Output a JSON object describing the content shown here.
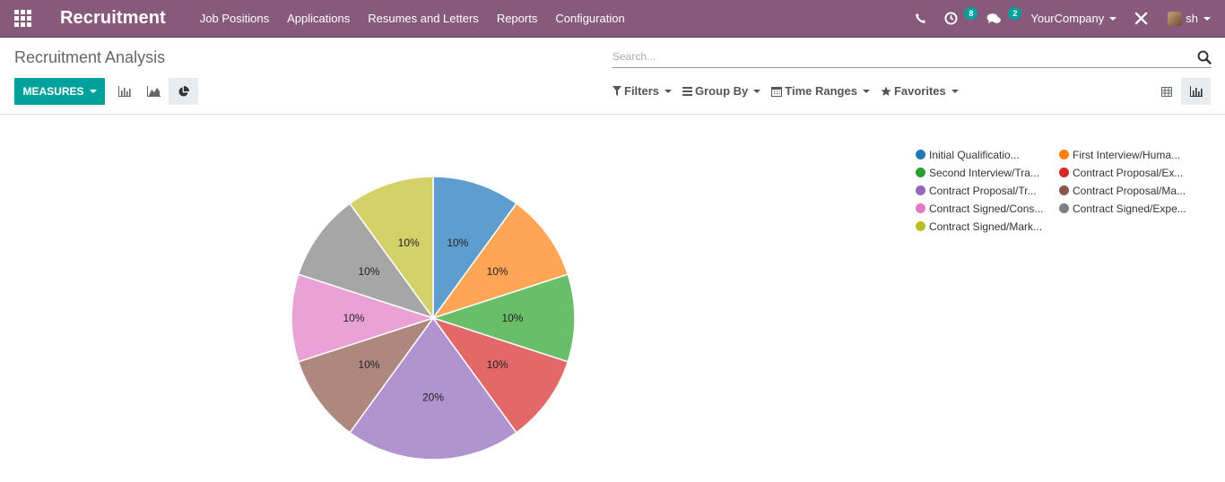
{
  "navbar": {
    "app_name": "Recruitment",
    "menu": [
      "Job Positions",
      "Applications",
      "Resumes and Letters",
      "Reports",
      "Configuration"
    ],
    "activity_count": "8",
    "messages_count": "2",
    "company": "YourCompany",
    "user": "sh",
    "icons": [
      "apps-grid-icon",
      "phone-icon",
      "clock-icon",
      "chat-icon",
      "debug-tools-icon",
      "avatar"
    ]
  },
  "control_panel": {
    "title": "Recruitment Analysis",
    "search_placeholder": "Search...",
    "measures_label": "MEASURES",
    "filters_label": "Filters",
    "group_by_label": "Group By",
    "time_ranges_label": "Time Ranges",
    "favorites_label": "Favorites"
  },
  "colors": {
    "navbar": "#875a7b",
    "primary_button": "#00a09d"
  },
  "chart_data": {
    "type": "pie",
    "labels": [
      "Initial Qualificatio...",
      "First Interview/Huma...",
      "Second Interview/Tra...",
      "Contract Proposal/Ex...",
      "Contract Proposal/Tr...",
      "Contract Proposal/Ma...",
      "Contract Signed/Cons...",
      "Contract Signed/Expe...",
      "Contract Signed/Mark..."
    ],
    "values": [
      10,
      10,
      10,
      10,
      20,
      10,
      10,
      10,
      10
    ],
    "value_labels": [
      "10%",
      "10%",
      "10%",
      "10%",
      "20%",
      "10%",
      "10%",
      "10%",
      "10%"
    ],
    "legend_colors": [
      "#1f77b4",
      "#ff7f0e",
      "#2ca02c",
      "#d62728",
      "#9467bd",
      "#8c564b",
      "#e377c2",
      "#7f7f7f",
      "#bcbd22"
    ],
    "slice_colors": [
      "#5f9dce",
      "#ffa656",
      "#69bf69",
      "#e46868",
      "#b193d0",
      "#ae887f",
      "#eaa1d5",
      "#a6a6a6",
      "#d4d168"
    ],
    "legend_position": "top-right"
  }
}
